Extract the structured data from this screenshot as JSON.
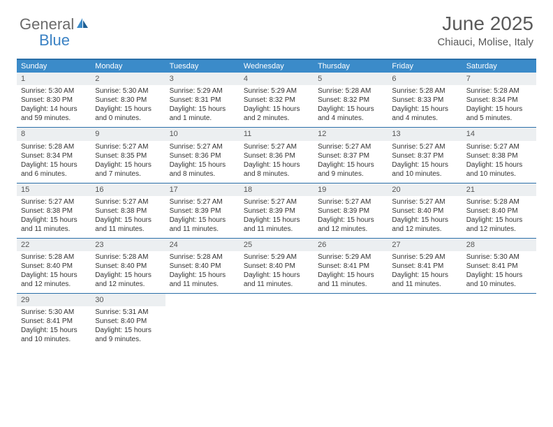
{
  "brand": {
    "part1": "General",
    "part2": "Blue"
  },
  "title": "June 2025",
  "location": "Chiauci, Molise, Italy",
  "colors": {
    "header_bar": "#3b8bc9",
    "border": "#2a6fa8",
    "daynum_bg": "#eceff1",
    "text": "#333333",
    "brand_gray": "#6b6b6b",
    "brand_blue": "#3b82c4"
  },
  "weekdays": [
    "Sunday",
    "Monday",
    "Tuesday",
    "Wednesday",
    "Thursday",
    "Friday",
    "Saturday"
  ],
  "weeks": [
    [
      {
        "n": "1",
        "sr": "Sunrise: 5:30 AM",
        "ss": "Sunset: 8:30 PM",
        "dl": "Daylight: 14 hours and 59 minutes."
      },
      {
        "n": "2",
        "sr": "Sunrise: 5:30 AM",
        "ss": "Sunset: 8:30 PM",
        "dl": "Daylight: 15 hours and 0 minutes."
      },
      {
        "n": "3",
        "sr": "Sunrise: 5:29 AM",
        "ss": "Sunset: 8:31 PM",
        "dl": "Daylight: 15 hours and 1 minute."
      },
      {
        "n": "4",
        "sr": "Sunrise: 5:29 AM",
        "ss": "Sunset: 8:32 PM",
        "dl": "Daylight: 15 hours and 2 minutes."
      },
      {
        "n": "5",
        "sr": "Sunrise: 5:28 AM",
        "ss": "Sunset: 8:32 PM",
        "dl": "Daylight: 15 hours and 4 minutes."
      },
      {
        "n": "6",
        "sr": "Sunrise: 5:28 AM",
        "ss": "Sunset: 8:33 PM",
        "dl": "Daylight: 15 hours and 4 minutes."
      },
      {
        "n": "7",
        "sr": "Sunrise: 5:28 AM",
        "ss": "Sunset: 8:34 PM",
        "dl": "Daylight: 15 hours and 5 minutes."
      }
    ],
    [
      {
        "n": "8",
        "sr": "Sunrise: 5:28 AM",
        "ss": "Sunset: 8:34 PM",
        "dl": "Daylight: 15 hours and 6 minutes."
      },
      {
        "n": "9",
        "sr": "Sunrise: 5:27 AM",
        "ss": "Sunset: 8:35 PM",
        "dl": "Daylight: 15 hours and 7 minutes."
      },
      {
        "n": "10",
        "sr": "Sunrise: 5:27 AM",
        "ss": "Sunset: 8:36 PM",
        "dl": "Daylight: 15 hours and 8 minutes."
      },
      {
        "n": "11",
        "sr": "Sunrise: 5:27 AM",
        "ss": "Sunset: 8:36 PM",
        "dl": "Daylight: 15 hours and 8 minutes."
      },
      {
        "n": "12",
        "sr": "Sunrise: 5:27 AM",
        "ss": "Sunset: 8:37 PM",
        "dl": "Daylight: 15 hours and 9 minutes."
      },
      {
        "n": "13",
        "sr": "Sunrise: 5:27 AM",
        "ss": "Sunset: 8:37 PM",
        "dl": "Daylight: 15 hours and 10 minutes."
      },
      {
        "n": "14",
        "sr": "Sunrise: 5:27 AM",
        "ss": "Sunset: 8:38 PM",
        "dl": "Daylight: 15 hours and 10 minutes."
      }
    ],
    [
      {
        "n": "15",
        "sr": "Sunrise: 5:27 AM",
        "ss": "Sunset: 8:38 PM",
        "dl": "Daylight: 15 hours and 11 minutes."
      },
      {
        "n": "16",
        "sr": "Sunrise: 5:27 AM",
        "ss": "Sunset: 8:38 PM",
        "dl": "Daylight: 15 hours and 11 minutes."
      },
      {
        "n": "17",
        "sr": "Sunrise: 5:27 AM",
        "ss": "Sunset: 8:39 PM",
        "dl": "Daylight: 15 hours and 11 minutes."
      },
      {
        "n": "18",
        "sr": "Sunrise: 5:27 AM",
        "ss": "Sunset: 8:39 PM",
        "dl": "Daylight: 15 hours and 11 minutes."
      },
      {
        "n": "19",
        "sr": "Sunrise: 5:27 AM",
        "ss": "Sunset: 8:39 PM",
        "dl": "Daylight: 15 hours and 12 minutes."
      },
      {
        "n": "20",
        "sr": "Sunrise: 5:27 AM",
        "ss": "Sunset: 8:40 PM",
        "dl": "Daylight: 15 hours and 12 minutes."
      },
      {
        "n": "21",
        "sr": "Sunrise: 5:28 AM",
        "ss": "Sunset: 8:40 PM",
        "dl": "Daylight: 15 hours and 12 minutes."
      }
    ],
    [
      {
        "n": "22",
        "sr": "Sunrise: 5:28 AM",
        "ss": "Sunset: 8:40 PM",
        "dl": "Daylight: 15 hours and 12 minutes."
      },
      {
        "n": "23",
        "sr": "Sunrise: 5:28 AM",
        "ss": "Sunset: 8:40 PM",
        "dl": "Daylight: 15 hours and 12 minutes."
      },
      {
        "n": "24",
        "sr": "Sunrise: 5:28 AM",
        "ss": "Sunset: 8:40 PM",
        "dl": "Daylight: 15 hours and 11 minutes."
      },
      {
        "n": "25",
        "sr": "Sunrise: 5:29 AM",
        "ss": "Sunset: 8:40 PM",
        "dl": "Daylight: 15 hours and 11 minutes."
      },
      {
        "n": "26",
        "sr": "Sunrise: 5:29 AM",
        "ss": "Sunset: 8:41 PM",
        "dl": "Daylight: 15 hours and 11 minutes."
      },
      {
        "n": "27",
        "sr": "Sunrise: 5:29 AM",
        "ss": "Sunset: 8:41 PM",
        "dl": "Daylight: 15 hours and 11 minutes."
      },
      {
        "n": "28",
        "sr": "Sunrise: 5:30 AM",
        "ss": "Sunset: 8:41 PM",
        "dl": "Daylight: 15 hours and 10 minutes."
      }
    ],
    [
      {
        "n": "29",
        "sr": "Sunrise: 5:30 AM",
        "ss": "Sunset: 8:41 PM",
        "dl": "Daylight: 15 hours and 10 minutes."
      },
      {
        "n": "30",
        "sr": "Sunrise: 5:31 AM",
        "ss": "Sunset: 8:40 PM",
        "dl": "Daylight: 15 hours and 9 minutes."
      },
      null,
      null,
      null,
      null,
      null
    ]
  ]
}
